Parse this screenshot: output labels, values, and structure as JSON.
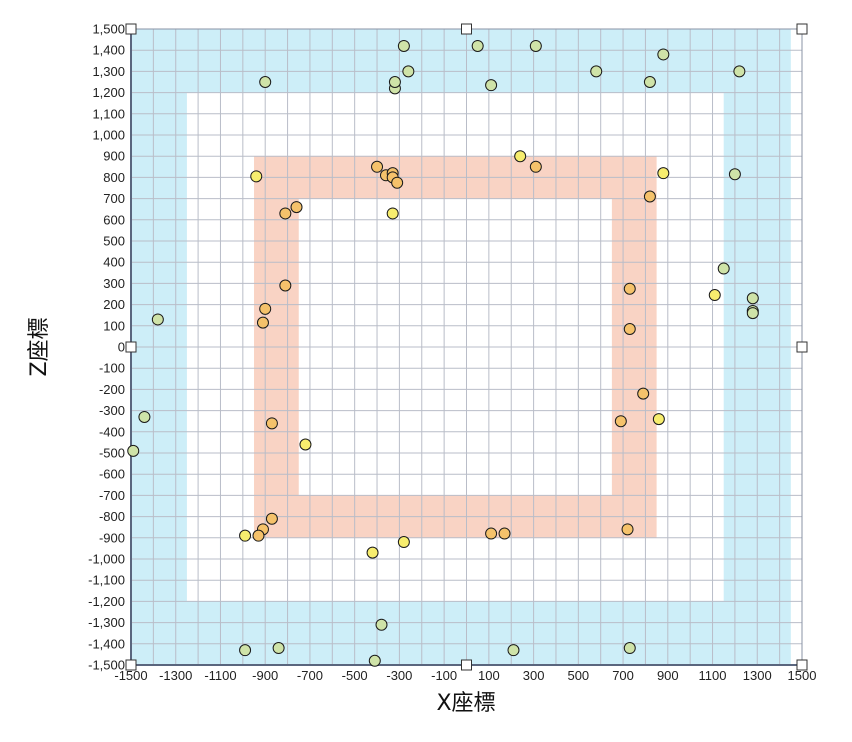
{
  "chart_data": {
    "type": "scatter",
    "xlabel": "X座標",
    "ylabel": "Z座標",
    "xlim": [
      -1500,
      1500
    ],
    "ylim": [
      -1500,
      1500
    ],
    "x_tick_values": [
      -1500,
      -1300,
      -1100,
      -900,
      -700,
      -500,
      -300,
      -100,
      100,
      300,
      500,
      700,
      900,
      1100,
      1300,
      1500
    ],
    "x_tick_labels": [
      "-1500",
      "-1300",
      "-1100",
      "-900",
      "-700",
      "-500",
      "-300",
      "-100",
      "100",
      "300",
      "500",
      "700",
      "900",
      "1100",
      "1300",
      "1500"
    ],
    "y_tick_values": [
      1500,
      1400,
      1300,
      1200,
      1100,
      1000,
      900,
      800,
      700,
      600,
      500,
      400,
      300,
      200,
      100,
      0,
      -100,
      -200,
      -300,
      -400,
      -500,
      -600,
      -700,
      -800,
      -900,
      -1000,
      -1100,
      -1200,
      -1300,
      -1400,
      -1500
    ],
    "y_tick_labels": [
      "1,500",
      "1,400",
      "1,300",
      "1,200",
      "1,100",
      "1,000",
      "900",
      "800",
      "700",
      "600",
      "500",
      "400",
      "300",
      "200",
      "100",
      "0",
      "-100",
      "-200",
      "-300",
      "-400",
      "-500",
      "-600",
      "-700",
      "-800",
      "-900",
      "-1,000",
      "-1,100",
      "-1,200",
      "-1,300",
      "-1,400",
      "-1,500"
    ],
    "grid": true,
    "grid_step": 100,
    "regions": [
      {
        "band": "outer",
        "color": "#cdeef8",
        "outer": [
          -1500,
          1450,
          -1500,
          1500
        ],
        "inner": [
          -1250,
          1150,
          -1200,
          1200
        ]
      },
      {
        "band": "inner",
        "color": "#f9d3c4",
        "outer": [
          -950,
          850,
          -900,
          900
        ],
        "inner": [
          -750,
          650,
          -700,
          700
        ]
      }
    ],
    "series": [
      {
        "color": "#cfe3a8",
        "points": [
          [
            -1440,
            -330
          ],
          [
            -1490,
            -490
          ],
          [
            -1380,
            130
          ],
          [
            -900,
            1250
          ],
          [
            -320,
            1220
          ],
          [
            -320,
            1250
          ],
          [
            -280,
            1420
          ],
          [
            -260,
            1300
          ],
          [
            50,
            1420
          ],
          [
            110,
            1235
          ],
          [
            310,
            1420
          ],
          [
            580,
            1300
          ],
          [
            820,
            1250
          ],
          [
            880,
            1380
          ],
          [
            1220,
            1300
          ],
          [
            1200,
            815
          ],
          [
            1150,
            370
          ],
          [
            1280,
            230
          ],
          [
            1280,
            170
          ],
          [
            1280,
            160
          ],
          [
            -990,
            -1430
          ],
          [
            -840,
            -1420
          ],
          [
            -380,
            -1310
          ],
          [
            -410,
            -1480
          ],
          [
            210,
            -1430
          ],
          [
            730,
            -1420
          ]
        ]
      },
      {
        "color": "#f5c26b",
        "points": [
          [
            -400,
            850
          ],
          [
            -360,
            810
          ],
          [
            -330,
            820
          ],
          [
            -330,
            800
          ],
          [
            -310,
            775
          ],
          [
            310,
            850
          ],
          [
            -760,
            660
          ],
          [
            -810,
            630
          ],
          [
            820,
            710
          ],
          [
            -810,
            290
          ],
          [
            -900,
            180
          ],
          [
            -910,
            115
          ],
          [
            730,
            275
          ],
          [
            730,
            85
          ],
          [
            790,
            -220
          ],
          [
            690,
            -350
          ],
          [
            -870,
            -360
          ],
          [
            -870,
            -810
          ],
          [
            -910,
            -860
          ],
          [
            -930,
            -890
          ],
          [
            110,
            -880
          ],
          [
            170,
            -880
          ],
          [
            720,
            -860
          ]
        ]
      },
      {
        "color": "#f7ed6e",
        "points": [
          [
            -940,
            805
          ],
          [
            -330,
            630
          ],
          [
            240,
            900
          ],
          [
            880,
            820
          ],
          [
            1110,
            245
          ],
          [
            -720,
            -460
          ],
          [
            860,
            -340
          ],
          [
            -990,
            -890
          ],
          [
            -280,
            -920
          ],
          [
            -420,
            -970
          ]
        ]
      }
    ],
    "corner_handles": "square markers on plot frame corners and edge midpoints"
  }
}
